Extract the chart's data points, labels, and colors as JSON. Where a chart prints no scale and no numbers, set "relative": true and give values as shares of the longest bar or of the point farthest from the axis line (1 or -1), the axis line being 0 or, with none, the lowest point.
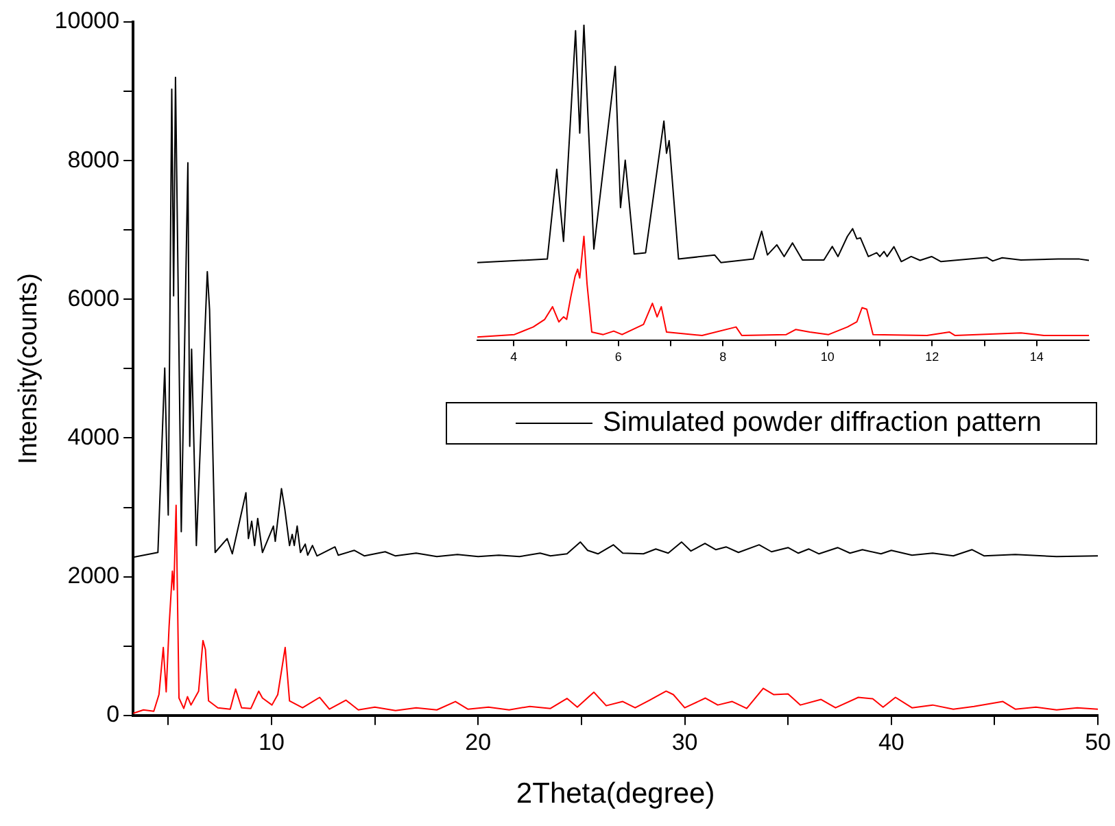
{
  "chart_data": [
    {
      "type": "line",
      "xlabel": "2Theta(degree)",
      "ylabel": "Intensity(counts)",
      "legend": "right",
      "grid": false,
      "marker": "none",
      "line_style": "solid",
      "xlim": [
        3.3,
        50
      ],
      "xticks": [
        {
          "value": 5,
          "label": null
        },
        10,
        {
          "value": 15,
          "label": null
        },
        20,
        {
          "value": 25,
          "label": null
        },
        30,
        {
          "value": 35,
          "label": null
        },
        40,
        {
          "value": 45,
          "label": null
        },
        50
      ],
      "ylim": [
        0,
        10000
      ],
      "yticks": [
        0,
        {
          "value": 1000,
          "label": null
        },
        2000,
        {
          "value": 3000,
          "label": null
        },
        4000,
        {
          "value": 5000,
          "label": null
        },
        6000,
        {
          "value": 7000,
          "label": null
        },
        8000,
        {
          "value": 9000,
          "label": null
        },
        10000
      ],
      "series": [
        {
          "name": "Simulated powder diffraction pattern",
          "color": "#000000",
          "x": [
            3.3,
            4.5,
            4.83,
            5.0,
            5.17,
            5.26,
            5.35,
            5.63,
            5.95,
            6.04,
            6.13,
            6.36,
            6.89,
            7.0,
            7.27,
            7.85,
            8.1,
            8.76,
            8.88,
            9.04,
            9.18,
            9.33,
            9.56,
            10.09,
            10.18,
            10.48,
            10.64,
            10.87,
            11.0,
            11.1,
            11.24,
            11.4,
            11.63,
            11.75,
            11.98,
            12.2,
            13.07,
            13.23,
            14.0,
            14.5,
            15.5,
            16.0,
            17,
            18,
            19,
            20,
            21,
            22,
            23,
            23.5,
            24.3,
            24.95,
            25.3,
            25.8,
            26.55,
            27,
            28,
            28.6,
            29.2,
            29.85,
            30.3,
            30.98,
            31.5,
            32,
            32.6,
            33.6,
            34.2,
            35,
            35.5,
            36,
            36.5,
            37.4,
            38,
            38.6,
            39.5,
            40,
            41,
            42,
            43,
            43.9,
            44.5,
            46,
            48,
            50
          ],
          "values": [
            2280,
            2350,
            5010,
            2890,
            9030,
            6050,
            9200,
            2650,
            7970,
            3880,
            5280,
            2450,
            6400,
            5850,
            2350,
            2550,
            2330,
            3210,
            2550,
            2800,
            2450,
            2840,
            2350,
            2730,
            2510,
            3270,
            2980,
            2450,
            2610,
            2450,
            2730,
            2350,
            2470,
            2310,
            2450,
            2300,
            2430,
            2310,
            2380,
            2300,
            2360,
            2300,
            2340,
            2290,
            2320,
            2290,
            2310,
            2290,
            2340,
            2300,
            2330,
            2500,
            2380,
            2330,
            2460,
            2340,
            2330,
            2400,
            2340,
            2500,
            2370,
            2480,
            2390,
            2430,
            2350,
            2460,
            2360,
            2420,
            2340,
            2400,
            2330,
            2420,
            2340,
            2390,
            2330,
            2380,
            2310,
            2340,
            2300,
            2390,
            2300,
            2320,
            2290,
            2300
          ]
        },
        {
          "color": "#ff0000",
          "x": [
            3.3,
            3.8,
            4.3,
            4.55,
            4.76,
            4.9,
            5.04,
            5.2,
            5.27,
            5.38,
            5.52,
            5.75,
            5.93,
            6.1,
            6.47,
            6.68,
            6.8,
            6.95,
            7.4,
            8.0,
            8.26,
            8.55,
            9.0,
            9.38,
            9.56,
            10.02,
            10.3,
            10.66,
            10.87,
            11.5,
            12.33,
            12.8,
            13.6,
            14.2,
            15,
            16,
            17,
            18,
            18.9,
            19.5,
            20.5,
            21.5,
            22.5,
            23.5,
            24.3,
            24.8,
            25.6,
            26.2,
            27,
            27.6,
            28.3,
            29.1,
            29.45,
            30,
            31,
            31.6,
            32.3,
            33,
            33.8,
            34.3,
            35,
            35.6,
            36.6,
            37.3,
            38.4,
            39.1,
            39.6,
            40.2,
            41,
            42,
            43,
            44,
            45.4,
            46,
            47,
            48,
            49,
            50
          ],
          "values": [
            30,
            80,
            60,
            300,
            980,
            340,
            1280,
            2080,
            1810,
            3030,
            250,
            100,
            270,
            150,
            350,
            1080,
            950,
            210,
            110,
            90,
            380,
            110,
            100,
            350,
            250,
            150,
            300,
            980,
            210,
            110,
            260,
            90,
            220,
            80,
            120,
            70,
            110,
            80,
            200,
            90,
            120,
            80,
            130,
            100,
            245,
            120,
            335,
            140,
            200,
            110,
            220,
            350,
            300,
            110,
            250,
            150,
            200,
            100,
            390,
            300,
            310,
            150,
            230,
            110,
            260,
            240,
            120,
            260,
            110,
            150,
            90,
            130,
            200,
            90,
            120,
            80,
            110,
            90
          ]
        }
      ]
    },
    {
      "type": "line",
      "relative": true,
      "tick_labels": "x",
      "grid": false,
      "marker": "none",
      "line_style": "solid",
      "xlim": [
        3.3,
        15
      ],
      "xticks": [
        4,
        {
          "value": 5,
          "label": null
        },
        6,
        {
          "value": 7,
          "label": null
        },
        8,
        {
          "value": 9,
          "label": null
        },
        10,
        {
          "value": 11,
          "label": null
        },
        12,
        {
          "value": 13,
          "label": null
        },
        14
      ],
      "series": [
        {
          "color": "#000000",
          "x": [
            3.3,
            4.64,
            4.82,
            4.95,
            5.18,
            5.26,
            5.34,
            5.53,
            5.94,
            6.04,
            6.13,
            6.3,
            6.52,
            6.87,
            6.92,
            6.97,
            7.15,
            7.84,
            7.96,
            8.58,
            8.74,
            8.85,
            9.03,
            9.17,
            9.33,
            9.52,
            9.93,
            10.09,
            10.2,
            10.38,
            10.48,
            10.56,
            10.63,
            10.78,
            10.94,
            11.0,
            11.08,
            11.14,
            11.27,
            11.41,
            11.6,
            11.77,
            11.99,
            12.17,
            13.05,
            13.16,
            13.34,
            13.7,
            14.41,
            14.82,
            15
          ],
          "values": [
            0.247,
            0.258,
            0.542,
            0.314,
            0.981,
            0.657,
            1,
            0.29,
            0.868,
            0.421,
            0.571,
            0.274,
            0.278,
            0.695,
            0.593,
            0.633,
            0.258,
            0.271,
            0.247,
            0.258,
            0.346,
            0.271,
            0.303,
            0.266,
            0.309,
            0.255,
            0.255,
            0.298,
            0.266,
            0.33,
            0.354,
            0.322,
            0.325,
            0.266,
            0.278,
            0.266,
            0.282,
            0.266,
            0.297,
            0.25,
            0.266,
            0.254,
            0.266,
            0.25,
            0.263,
            0.252,
            0.262,
            0.255,
            0.258,
            0.258,
            0.254
          ]
        },
        {
          "color": "#ff0000",
          "x": [
            3.3,
            4.01,
            4.37,
            4.59,
            4.74,
            4.86,
            4.95,
            5.01,
            5.09,
            5.17,
            5.22,
            5.26,
            5.34,
            5.4,
            5.49,
            5.71,
            5.91,
            6.07,
            6.48,
            6.65,
            6.74,
            6.82,
            6.92,
            7.6,
            8.25,
            8.36,
            9.21,
            9.39,
            9.66,
            10.02,
            10.38,
            10.56,
            10.66,
            10.75,
            10.87,
            11.9,
            12.33,
            12.44,
            13.7,
            14.14,
            15
          ],
          "values": [
            0.011,
            0.019,
            0.043,
            0.067,
            0.107,
            0.059,
            0.075,
            0.067,
            0.139,
            0.203,
            0.226,
            0.198,
            0.33,
            0.179,
            0.027,
            0.019,
            0.03,
            0.019,
            0.051,
            0.118,
            0.075,
            0.107,
            0.027,
            0.016,
            0.043,
            0.016,
            0.019,
            0.035,
            0.027,
            0.019,
            0.043,
            0.059,
            0.104,
            0.099,
            0.019,
            0.016,
            0.027,
            0.016,
            0.024,
            0.016,
            0.016
          ]
        }
      ]
    }
  ]
}
